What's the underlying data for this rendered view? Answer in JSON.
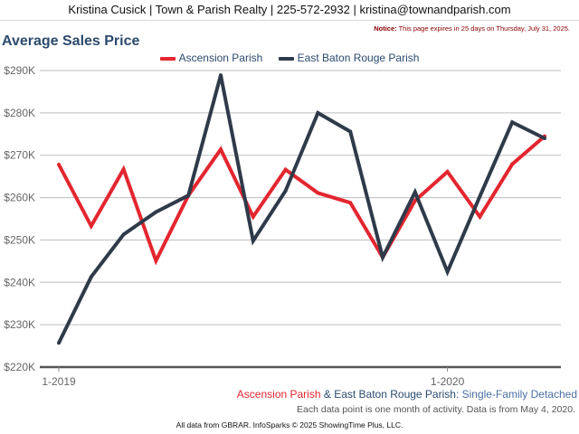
{
  "header": {
    "contact": "Kristina Cusick | Town & Parish Realty | 225-572-2932 | kristina@townandparish.com"
  },
  "notice": {
    "label": "Notice:",
    "text": "This page expires in 25 days on Thursday, July 31, 2025."
  },
  "chart_title": "Average Sales Price",
  "colors": {
    "ascension": "#e3262f",
    "ebr": "#2f3a4a",
    "grid": "#bdbdbd",
    "title": "#2b4a6e"
  },
  "subtitle": {
    "series_a": "Ascension Parish",
    "joiner": " & ",
    "series_b": "East Baton Rouge Parish",
    "colon": ": ",
    "property_type": "Single-Family Detached"
  },
  "activity_note": "Each data point is one month of activity. Data is from May 4, 2020.",
  "footer": "All data from GBRAR. InfoSparks © 2025 ShowingTime Plus, LLC.",
  "chart_data": {
    "type": "line",
    "title": "Average Sales Price",
    "x": [
      "2019-01",
      "2019-02",
      "2019-03",
      "2019-04",
      "2019-05",
      "2019-06",
      "2019-07",
      "2019-08",
      "2019-09",
      "2019-10",
      "2019-11",
      "2019-12",
      "2020-01",
      "2020-02",
      "2020-03",
      "2020-04"
    ],
    "x_tick_labels": [
      {
        "index": 0,
        "label": "1-2019"
      },
      {
        "index": 12,
        "label": "1-2020"
      }
    ],
    "ylim": [
      220000,
      290000
    ],
    "y_ticks": [
      220000,
      230000,
      240000,
      250000,
      260000,
      270000,
      280000,
      290000
    ],
    "y_tick_labels": [
      "$220K",
      "$230K",
      "$240K",
      "$250K",
      "$260K",
      "$270K",
      "$280K",
      "$290K"
    ],
    "grid": true,
    "legend_position": "top-center",
    "series": [
      {
        "name": "Ascension Parish",
        "color": "#e3262f",
        "values": [
          267800,
          253300,
          266700,
          245100,
          260500,
          271400,
          255500,
          266600,
          261100,
          258800,
          245900,
          259300,
          266100,
          255500,
          267900,
          274500
        ]
      },
      {
        "name": "East Baton Rouge Parish",
        "color": "#2f3a4a",
        "values": [
          225700,
          241300,
          251300,
          256600,
          260500,
          288900,
          249800,
          261600,
          280000,
          275600,
          245900,
          261300,
          242500,
          260300,
          277800,
          274000
        ]
      }
    ]
  }
}
